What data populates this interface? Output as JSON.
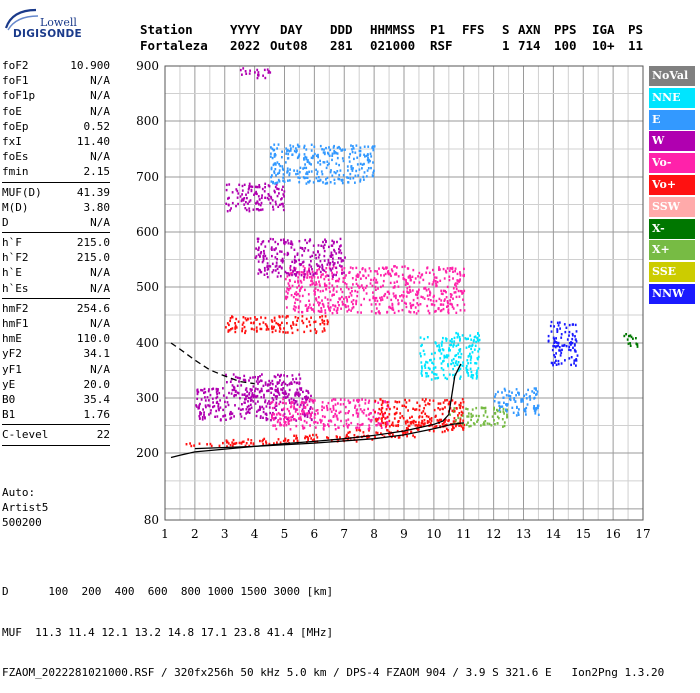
{
  "logo": {
    "line1": "Lowell",
    "line2": "DIGISONDE"
  },
  "header": {
    "labels": [
      "Station",
      "YYYY",
      "DAY",
      "DDD",
      "HHMMSS",
      "P1",
      "FFS",
      "S",
      "AXN",
      "PPS",
      "IGA",
      "PS"
    ],
    "values": [
      "Fortaleza",
      "2022",
      "Out08",
      "281",
      "021000",
      "RSF",
      "",
      "1",
      "714",
      "100",
      "10+",
      "11"
    ]
  },
  "params": {
    "group1": [
      {
        "name": "foF2",
        "value": "10.900"
      },
      {
        "name": "foF1",
        "value": "N/A"
      },
      {
        "name": "foF1p",
        "value": "N/A"
      },
      {
        "name": "foE",
        "value": "N/A"
      },
      {
        "name": "foEp",
        "value": "0.52"
      },
      {
        "name": "fxI",
        "value": "11.40"
      },
      {
        "name": "foEs",
        "value": "N/A"
      },
      {
        "name": "fmin",
        "value": "2.15"
      }
    ],
    "group2": [
      {
        "name": "MUF(D)",
        "value": "41.39"
      },
      {
        "name": "M(D)",
        "value": "3.80"
      },
      {
        "name": "D",
        "value": "N/A"
      }
    ],
    "group3": [
      {
        "name": "h`F",
        "value": "215.0"
      },
      {
        "name": "h`F2",
        "value": "215.0"
      },
      {
        "name": "h`E",
        "value": "N/A"
      },
      {
        "name": "h`Es",
        "value": "N/A"
      }
    ],
    "group4": [
      {
        "name": "hmF2",
        "value": "254.6"
      },
      {
        "name": "hmF1",
        "value": "N/A"
      },
      {
        "name": "hmE",
        "value": "110.0"
      },
      {
        "name": "yF2",
        "value": "34.1"
      },
      {
        "name": "yF1",
        "value": "N/A"
      },
      {
        "name": "yE",
        "value": "20.0"
      },
      {
        "name": "B0",
        "value": "35.4"
      },
      {
        "name": "B1",
        "value": "1.76"
      }
    ],
    "group5": [
      {
        "name": "C-level",
        "value": "22"
      }
    ]
  },
  "auto": {
    "line1": "Auto:",
    "line2": "Artist5",
    "line3": "500200"
  },
  "legend": [
    {
      "label": "NoVal",
      "color": "#808080"
    },
    {
      "label": "NNE",
      "color": "#00e5ff"
    },
    {
      "label": "E",
      "color": "#3399ff"
    },
    {
      "label": "W",
      "color": "#b000b0"
    },
    {
      "label": "Vo-",
      "color": "#ff22aa"
    },
    {
      "label": "Vo+",
      "color": "#ff1111"
    },
    {
      "label": "SSW",
      "color": "#ffaaaa"
    },
    {
      "label": "X-",
      "color": "#007700"
    },
    {
      "label": "X+",
      "color": "#77bb44"
    },
    {
      "label": "SSE",
      "color": "#cccc00"
    },
    {
      "label": "NNW",
      "color": "#1a1aff"
    }
  ],
  "footer": {
    "d_label": "D",
    "d_values": "100  200  400  600  800 1000 1500 3000 [km]",
    "muf_label": "MUF",
    "muf_values": "11.3 11.4 12.1 13.2 14.8 17.1 23.8 41.4 [MHz]",
    "info": "FZAOM_2022281021000.RSF / 320fx256h 50 kHz 5.0 km / DPS-4 FZAOM 904 / 3.9 S 321.6 E   Ion2Png 1.3.20"
  },
  "chart_data": {
    "type": "scatter",
    "xlabel": "",
    "ylabel": "",
    "xlim": [
      1,
      17
    ],
    "ylim": [
      80,
      900
    ],
    "x_ticks": [
      "1",
      "2",
      "3",
      "4",
      "5",
      "6",
      "7",
      "8",
      "9",
      "10",
      "11",
      "12",
      "13",
      "14",
      "15",
      "16",
      "17"
    ],
    "y_ticks": [
      "80",
      "200",
      "300",
      "400",
      "500",
      "600",
      "700",
      "800",
      "900"
    ],
    "grid": true,
    "traces": [
      {
        "name": "profile",
        "color": "#000000",
        "points": [
          [
            1.2,
            192
          ],
          [
            1.5,
            196
          ],
          [
            2,
            202
          ],
          [
            3,
            207
          ],
          [
            4,
            212
          ],
          [
            5,
            217
          ],
          [
            6,
            221
          ],
          [
            7,
            226
          ],
          [
            8,
            232
          ],
          [
            9,
            240
          ],
          [
            10,
            252
          ],
          [
            10.3,
            258
          ],
          [
            10.5,
            270
          ],
          [
            10.7,
            340
          ],
          [
            10.9,
            362
          ]
        ]
      },
      {
        "name": "leading-edge",
        "color": "#000000",
        "points": [
          [
            2,
            208
          ],
          [
            4,
            212
          ],
          [
            6,
            218
          ],
          [
            8,
            226
          ],
          [
            9,
            233
          ],
          [
            10,
            244
          ],
          [
            10.6,
            252
          ],
          [
            11,
            255
          ]
        ]
      },
      {
        "name": "dashed",
        "color": "#000000",
        "dashed": true,
        "points": [
          [
            1.2,
            400
          ],
          [
            1.5,
            389
          ],
          [
            2,
            369
          ],
          [
            2.5,
            351
          ],
          [
            3,
            340
          ],
          [
            3.5,
            330
          ],
          [
            4,
            326
          ]
        ]
      }
    ],
    "echo_regions": [
      {
        "f": [
          1.4,
          4.0
        ],
        "h": [
          214,
          222
        ],
        "color": "#ff1111"
      },
      {
        "f": [
          3.0,
          6.0
        ],
        "h": [
          218,
          228
        ],
        "color": "#ff1111"
      },
      {
        "f": [
          5.0,
          8.0
        ],
        "h": [
          223,
          235
        ],
        "color": "#ff1111"
      },
      {
        "f": [
          7.0,
          9.5
        ],
        "h": [
          230,
          245
        ],
        "color": "#ff1111"
      },
      {
        "f": [
          9.0,
          11.0
        ],
        "h": [
          240,
          262
        ],
        "color": "#ff1111"
      },
      {
        "f": [
          10.5,
          12.5
        ],
        "h": [
          250,
          285
        ],
        "color": "#77bb44"
      },
      {
        "f": [
          12.0,
          13.5
        ],
        "h": [
          270,
          320
        ],
        "color": "#3399ff"
      },
      {
        "f": [
          2.0,
          6.0
        ],
        "h": [
          260,
          320
        ],
        "color": "#b000b0"
      },
      {
        "f": [
          3.0,
          5.5
        ],
        "h": [
          300,
          345
        ],
        "color": "#b000b0"
      },
      {
        "f": [
          4.5,
          8.5
        ],
        "h": [
          245,
          300
        ],
        "color": "#ff22aa"
      },
      {
        "f": [
          8.0,
          11.0
        ],
        "h": [
          250,
          300
        ],
        "color": "#ff1111"
      },
      {
        "f": [
          9.5,
          11.5
        ],
        "h": [
          335,
          420
        ],
        "color": "#00e5ff"
      },
      {
        "f": [
          3.0,
          6.5
        ],
        "h": [
          420,
          450
        ],
        "color": "#ff1111"
      },
      {
        "f": [
          5.0,
          11.0
        ],
        "h": [
          455,
          540
        ],
        "color": "#ff22aa"
      },
      {
        "f": [
          4.0,
          7.0
        ],
        "h": [
          520,
          590
        ],
        "color": "#b000b0"
      },
      {
        "f": [
          3.0,
          5.0
        ],
        "h": [
          640,
          690
        ],
        "color": "#b000b0"
      },
      {
        "f": [
          4.5,
          8.0
        ],
        "h": [
          690,
          760
        ],
        "color": "#3399ff"
      },
      {
        "f": [
          3.5,
          4.5
        ],
        "h": [
          880,
          900
        ],
        "color": "#b000b0"
      },
      {
        "f": [
          13.8,
          14.8
        ],
        "h": [
          360,
          440
        ],
        "color": "#1a1aff"
      },
      {
        "f": [
          16.3,
          16.8
        ],
        "h": [
          395,
          420
        ],
        "color": "#007700"
      }
    ]
  }
}
